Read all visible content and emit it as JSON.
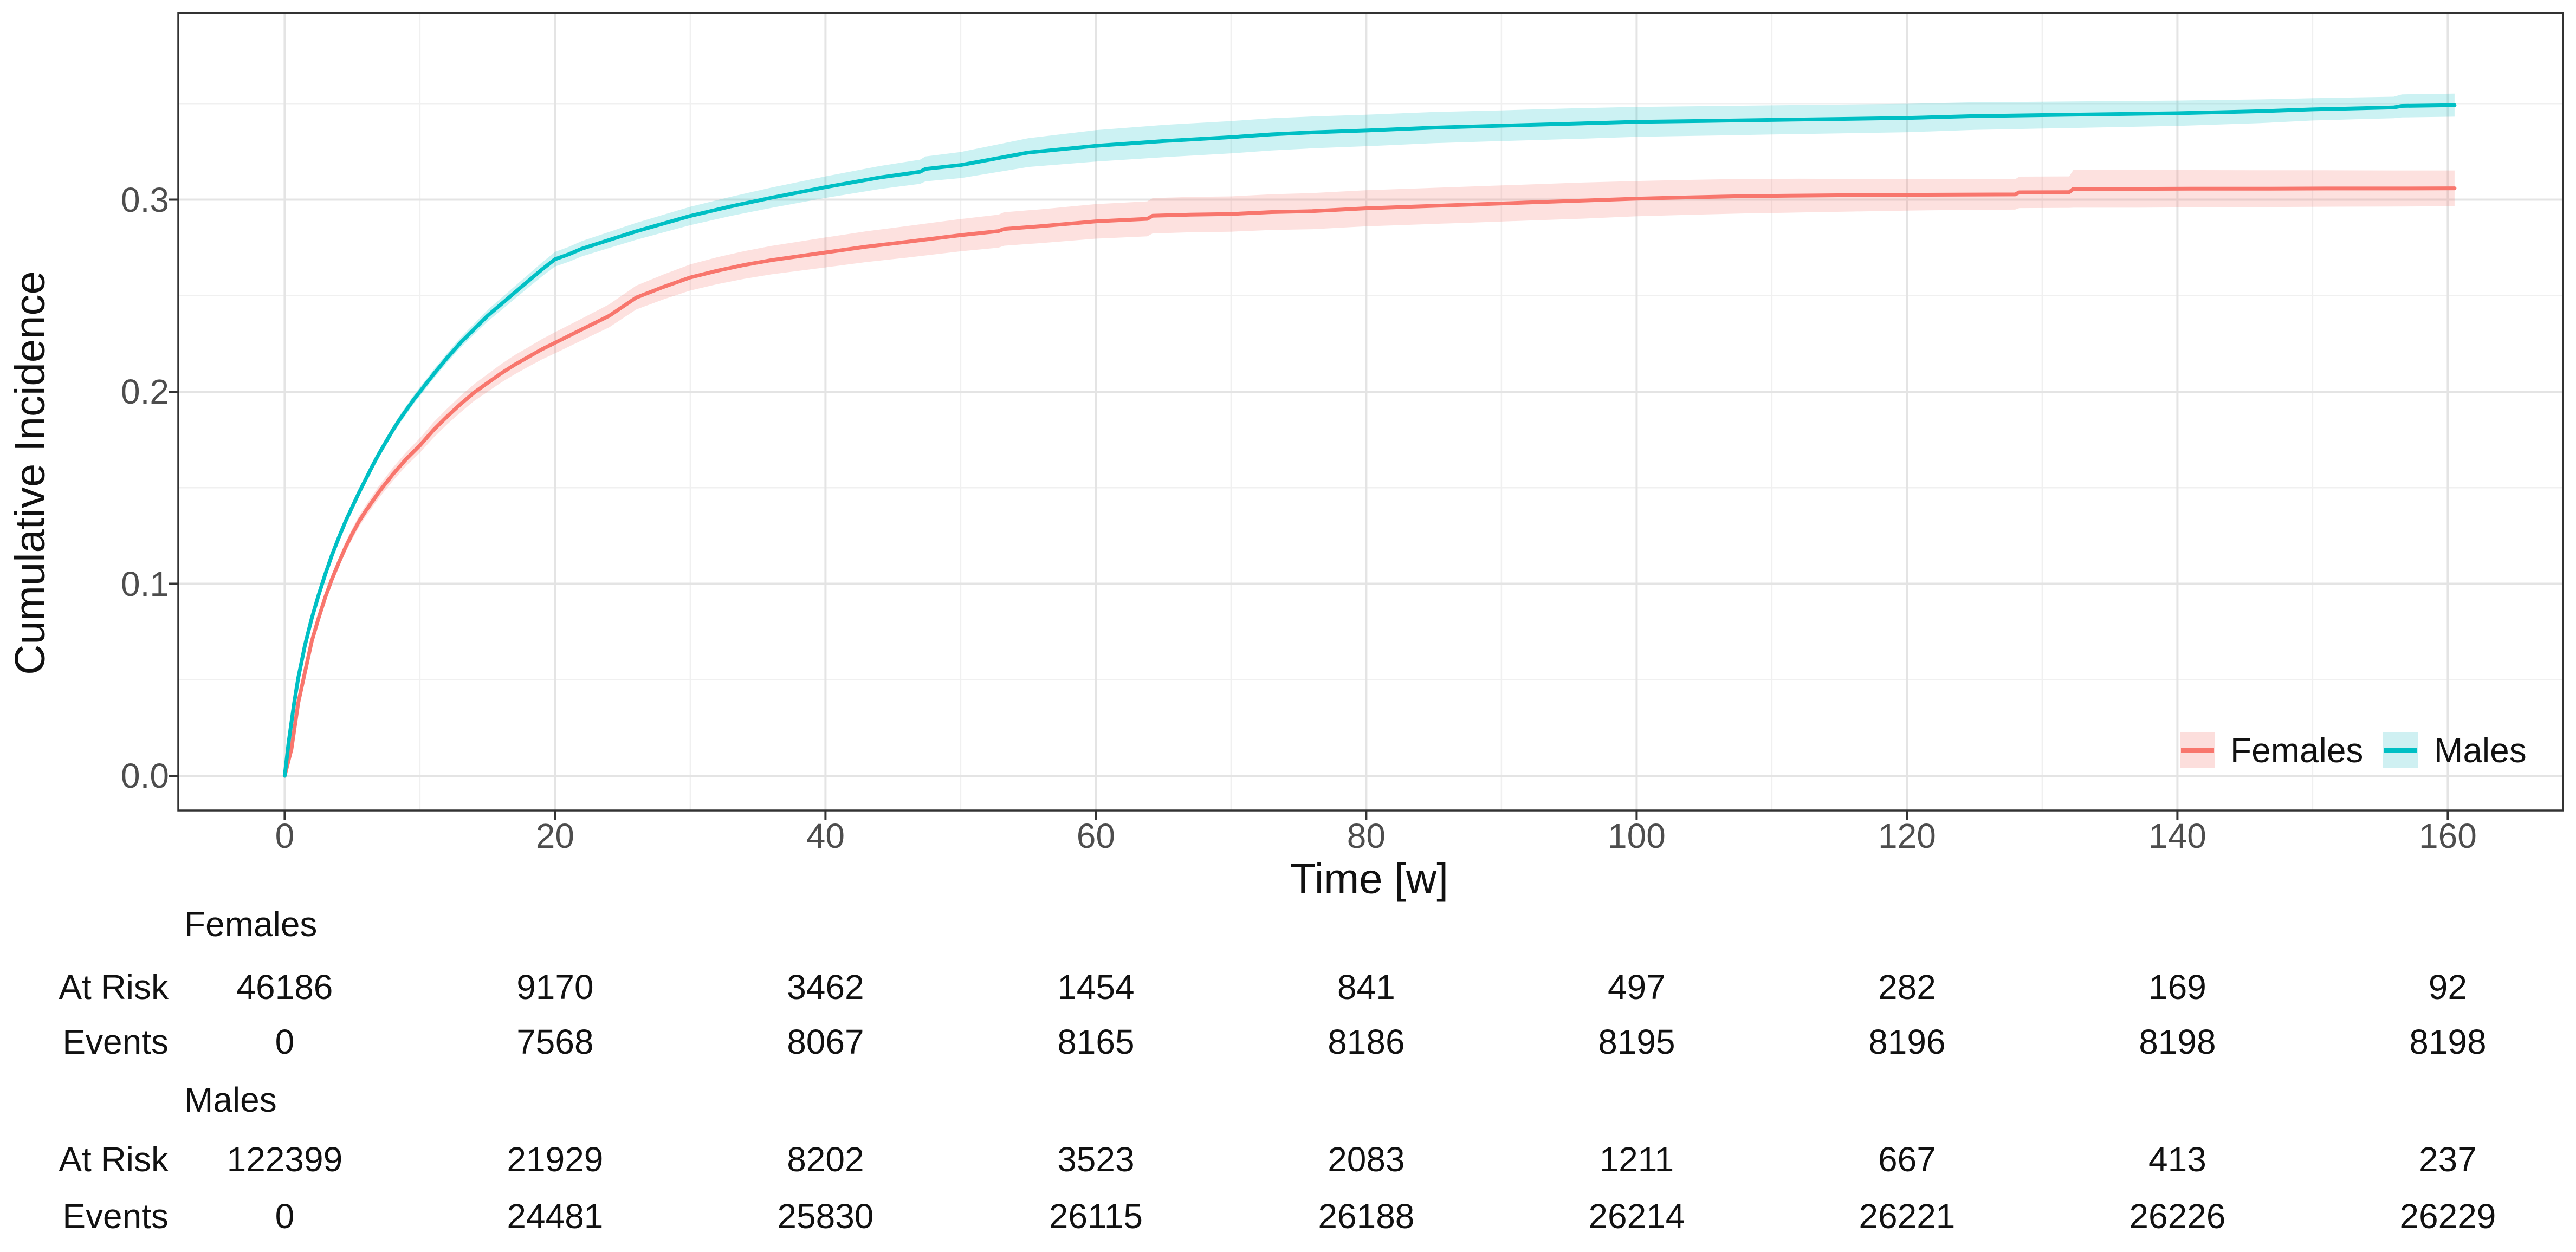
{
  "figure": {
    "x_axis": {
      "title": "Time [w]",
      "tick_labels": [
        "0",
        "20",
        "40",
        "60",
        "80",
        "100",
        "120",
        "140",
        "160"
      ],
      "tick_values": [
        0,
        20,
        40,
        60,
        80,
        100,
        120,
        140,
        160
      ],
      "minor_tick_values": [
        10,
        30,
        50,
        70,
        90,
        110,
        130,
        150
      ]
    },
    "y_axis": {
      "title": "Cumulative Incidence",
      "tick_labels": [
        "0.0",
        "0.1",
        "0.2",
        "0.3"
      ],
      "tick_values": [
        0,
        0.1,
        0.2,
        0.3
      ],
      "minor_tick_values": [
        0.05,
        0.15,
        0.25,
        0.35
      ]
    },
    "legend": {
      "items": [
        {
          "label": "Females",
          "line_color": "#F8766D",
          "key_fill": "#FCDEDC"
        },
        {
          "label": "Males",
          "line_color": "#00BFC4",
          "key_fill": "#CFF0F2"
        }
      ]
    },
    "colors": {
      "grid_major": "#E4E4E4",
      "grid_minor": "#F0F0F0",
      "panel_border": "#333333",
      "tick_mark": "#333333",
      "tick_label": "#4D4D4D",
      "text": "#111111",
      "background": "#FFFFFF"
    }
  },
  "chart_data": {
    "type": "line",
    "title": "",
    "xlabel": "Time [w]",
    "ylabel": "Cumulative Incidence",
    "xlim": [
      -8,
      168.5
    ],
    "ylim": [
      -0.018,
      0.397
    ],
    "x_major_ticks": [
      0,
      20,
      40,
      60,
      80,
      100,
      120,
      140,
      160
    ],
    "y_major_ticks": [
      0.0,
      0.1,
      0.2,
      0.3
    ],
    "grid": "major+minor",
    "legend_position": "bottom-right-inside",
    "points_format": [
      "time_w",
      "cum_incidence",
      "ci_halfwidth"
    ],
    "series": [
      {
        "name": "Females",
        "color": "#F8766D",
        "band_fill": "rgba(248,118,109,0.22)",
        "points": [
          [
            0,
            0,
            0
          ],
          [
            0.5,
            0.014,
            0.001
          ],
          [
            1,
            0.038,
            0.0014
          ],
          [
            1.5,
            0.054,
            0.0016
          ],
          [
            2,
            0.07,
            0.0018
          ],
          [
            2.5,
            0.082,
            0.002
          ],
          [
            3,
            0.093,
            0.0022
          ],
          [
            3.5,
            0.1025,
            0.0024
          ],
          [
            4,
            0.111,
            0.0025
          ],
          [
            4.5,
            0.119,
            0.0027
          ],
          [
            5,
            0.126,
            0.0028
          ],
          [
            5.5,
            0.1325,
            0.0029
          ],
          [
            6,
            0.138,
            0.003
          ],
          [
            6.5,
            0.143,
            0.0031
          ],
          [
            7,
            0.148,
            0.0032
          ],
          [
            8,
            0.157,
            0.0034
          ],
          [
            9,
            0.165,
            0.0036
          ],
          [
            10,
            0.172,
            0.0038
          ],
          [
            11,
            0.18,
            0.004
          ],
          [
            12,
            0.187,
            0.0041
          ],
          [
            13,
            0.1935,
            0.0043
          ],
          [
            14,
            0.1995,
            0.0044
          ],
          [
            15,
            0.2045,
            0.0046
          ],
          [
            16,
            0.2095,
            0.0048
          ],
          [
            17,
            0.214,
            0.005
          ],
          [
            18,
            0.218,
            0.0051
          ],
          [
            19,
            0.222,
            0.0053
          ],
          [
            20,
            0.2255,
            0.0055
          ],
          [
            22,
            0.2325,
            0.0057
          ],
          [
            24,
            0.2395,
            0.006
          ],
          [
            26,
            0.249,
            0.0062
          ],
          [
            28,
            0.2545,
            0.0065
          ],
          [
            30,
            0.2595,
            0.0068
          ],
          [
            32,
            0.263,
            0.007
          ],
          [
            34,
            0.266,
            0.0072
          ],
          [
            36,
            0.2685,
            0.0074
          ],
          [
            38,
            0.2705,
            0.0076
          ],
          [
            40,
            0.2725,
            0.0078
          ],
          [
            43,
            0.2755,
            0.008
          ],
          [
            46,
            0.278,
            0.0082
          ],
          [
            50,
            0.2815,
            0.0084
          ],
          [
            52.8,
            0.2836,
            0.0086
          ],
          [
            53.2,
            0.2847,
            0.0087
          ],
          [
            56,
            0.2862,
            0.0088
          ],
          [
            60,
            0.2887,
            0.009
          ],
          [
            63.8,
            0.29,
            0.0091
          ],
          [
            64.2,
            0.2916,
            0.0092
          ],
          [
            67,
            0.2922,
            0.0092
          ],
          [
            70,
            0.2925,
            0.0092
          ],
          [
            73,
            0.2935,
            0.0093
          ],
          [
            76,
            0.294,
            0.0094
          ],
          [
            80,
            0.2955,
            0.0094
          ],
          [
            84,
            0.2965,
            0.0094
          ],
          [
            88,
            0.2975,
            0.0094
          ],
          [
            92,
            0.2985,
            0.0094
          ],
          [
            96,
            0.2995,
            0.0094
          ],
          [
            100,
            0.3005,
            0.0092
          ],
          [
            104,
            0.3012,
            0.0091
          ],
          [
            108,
            0.3018,
            0.009
          ],
          [
            112,
            0.3021,
            0.0088
          ],
          [
            116,
            0.3023,
            0.0085
          ],
          [
            120,
            0.3025,
            0.0082
          ],
          [
            124,
            0.3026,
            0.008
          ],
          [
            128,
            0.3027,
            0.0079
          ],
          [
            128.3,
            0.3038,
            0.0082
          ],
          [
            132,
            0.3039,
            0.0082
          ],
          [
            132.3,
            0.3056,
            0.0098
          ],
          [
            137,
            0.3056,
            0.0098
          ],
          [
            141,
            0.3057,
            0.0097
          ],
          [
            146,
            0.3057,
            0.0096
          ],
          [
            151,
            0.3058,
            0.0095
          ],
          [
            156,
            0.3058,
            0.0094
          ],
          [
            160.5,
            0.3059,
            0.0093
          ]
        ]
      },
      {
        "name": "Males",
        "color": "#00BFC4",
        "band_fill": "rgba(0,191,196,0.20)",
        "points": [
          [
            0,
            0,
            0
          ],
          [
            0.3,
            0.018,
            0.001
          ],
          [
            0.7,
            0.038,
            0.001
          ],
          [
            1,
            0.051,
            0.001
          ],
          [
            1.5,
            0.068,
            0.0012
          ],
          [
            2,
            0.082,
            0.0013
          ],
          [
            2.5,
            0.094,
            0.0014
          ],
          [
            3,
            0.105,
            0.0015
          ],
          [
            3.5,
            0.115,
            0.0016
          ],
          [
            4,
            0.124,
            0.0017
          ],
          [
            4.5,
            0.1325,
            0.0017
          ],
          [
            5,
            0.14,
            0.0018
          ],
          [
            5.5,
            0.1475,
            0.0019
          ],
          [
            6,
            0.1545,
            0.002
          ],
          [
            6.5,
            0.1615,
            0.002
          ],
          [
            7,
            0.168,
            0.002
          ],
          [
            7.5,
            0.174,
            0.0021
          ],
          [
            8,
            0.18,
            0.0021
          ],
          [
            8.5,
            0.1855,
            0.0022
          ],
          [
            9,
            0.1905,
            0.0022
          ],
          [
            9.5,
            0.1955,
            0.0023
          ],
          [
            10,
            0.2,
            0.0023
          ],
          [
            11,
            0.209,
            0.0024
          ],
          [
            12,
            0.2175,
            0.0025
          ],
          [
            13,
            0.2255,
            0.0026
          ],
          [
            14,
            0.2325,
            0.0028
          ],
          [
            15,
            0.2395,
            0.003
          ],
          [
            16,
            0.2455,
            0.0032
          ],
          [
            17,
            0.2515,
            0.0033
          ],
          [
            18,
            0.2575,
            0.0034
          ],
          [
            19,
            0.2635,
            0.0036
          ],
          [
            20,
            0.269,
            0.0038
          ],
          [
            21,
            0.2715,
            0.0039
          ],
          [
            22,
            0.2745,
            0.004
          ],
          [
            24,
            0.279,
            0.0042
          ],
          [
            26,
            0.2835,
            0.0044
          ],
          [
            28,
            0.2875,
            0.0046
          ],
          [
            30,
            0.2915,
            0.0048
          ],
          [
            33,
            0.2965,
            0.005
          ],
          [
            36,
            0.301,
            0.0053
          ],
          [
            40,
            0.3065,
            0.0056
          ],
          [
            44,
            0.3115,
            0.006
          ],
          [
            47,
            0.3145,
            0.0063
          ],
          [
            47.4,
            0.316,
            0.0065
          ],
          [
            50,
            0.318,
            0.0068
          ],
          [
            55,
            0.3245,
            0.0075
          ],
          [
            60,
            0.328,
            0.0082
          ],
          [
            65,
            0.3305,
            0.0084
          ],
          [
            70,
            0.3325,
            0.0084
          ],
          [
            73,
            0.334,
            0.0084
          ],
          [
            76,
            0.335,
            0.0083
          ],
          [
            80,
            0.336,
            0.0082
          ],
          [
            85,
            0.3375,
            0.0081
          ],
          [
            90,
            0.3385,
            0.008
          ],
          [
            95,
            0.3395,
            0.008
          ],
          [
            100,
            0.3405,
            0.0078
          ],
          [
            105,
            0.341,
            0.0077
          ],
          [
            110,
            0.3415,
            0.0076
          ],
          [
            115,
            0.342,
            0.0075
          ],
          [
            120,
            0.3425,
            0.0074
          ],
          [
            125,
            0.3435,
            0.0072
          ],
          [
            130,
            0.344,
            0.007
          ],
          [
            135,
            0.3445,
            0.0068
          ],
          [
            140,
            0.345,
            0.0066
          ],
          [
            143,
            0.3455,
            0.0064
          ],
          [
            146,
            0.346,
            0.0062
          ],
          [
            150,
            0.347,
            0.0058
          ],
          [
            153,
            0.3475,
            0.0057
          ],
          [
            156,
            0.348,
            0.0056
          ],
          [
            156.6,
            0.3488,
            0.006
          ],
          [
            160.5,
            0.3492,
            0.006
          ]
        ]
      }
    ]
  },
  "risk_table": {
    "time_points": [
      0,
      20,
      40,
      60,
      80,
      100,
      120,
      140,
      160
    ],
    "row_labels": [
      "At Risk",
      "Events"
    ],
    "groups": [
      {
        "label": "Females",
        "at_risk": [
          46186,
          9170,
          3462,
          1454,
          841,
          497,
          282,
          169,
          92
        ],
        "events": [
          0,
          7568,
          8067,
          8165,
          8186,
          8195,
          8196,
          8198,
          8198
        ]
      },
      {
        "label": "Males",
        "at_risk": [
          122399,
          21929,
          8202,
          3523,
          2083,
          1211,
          667,
          413,
          237
        ],
        "events": [
          0,
          24481,
          25830,
          26115,
          26188,
          26214,
          26221,
          26226,
          26229
        ]
      }
    ]
  }
}
